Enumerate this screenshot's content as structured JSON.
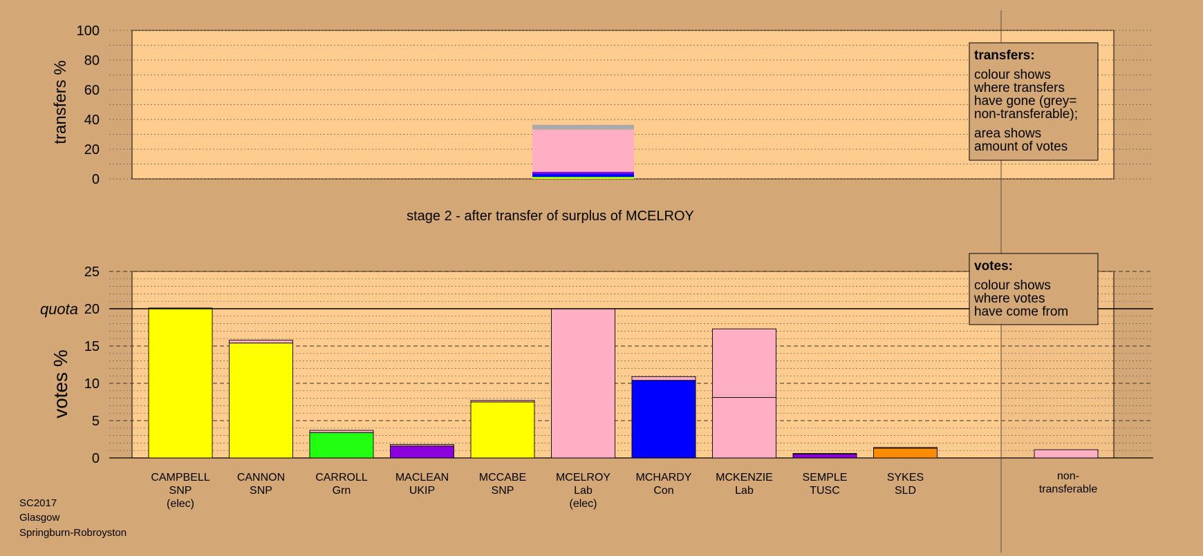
{
  "colors": {
    "background": "#d3a876",
    "panel": "#ffcc8f",
    "SNP": "#ffff00",
    "Grn": "#22ff11",
    "UKIP": "#8b00dd",
    "Lab": "#ffafc4",
    "Con": "#0000ff",
    "TUSC": "#8b00dd",
    "SLD": "#ff8c00",
    "nontransferable": "#aaaaaa"
  },
  "chart_data": [
    {
      "type": "bar",
      "name": "transfers",
      "ylabel": "transfers %",
      "ylim": [
        0,
        100
      ],
      "yticks": [
        "0",
        "20",
        "40",
        "60",
        "80",
        "100"
      ],
      "subtitle": "stage 2 - after transfer of surplus of MCELROY",
      "transfer_from": "MCELROY",
      "segments": [
        {
          "party": "SNP",
          "from": 0,
          "to": 0.8
        },
        {
          "party": "Grn",
          "from": 0.8,
          "to": 1.4
        },
        {
          "party": "Con",
          "from": 1.4,
          "to": 3.6
        },
        {
          "party": "UKIP",
          "from": 3.6,
          "to": 4.8
        },
        {
          "party": "Lab",
          "from": 4.8,
          "to": 33.2
        },
        {
          "party": "nontransferable",
          "from": 33.2,
          "to": 36.4
        }
      ],
      "legend": {
        "heading": "transfers:",
        "text1": "colour shows where transfers have gone (grey= non-transferable);",
        "text2": "area shows amount of votes"
      }
    },
    {
      "type": "bar",
      "name": "votes",
      "ylabel": "votes %",
      "ylim": [
        0,
        25
      ],
      "yticks": [
        "0",
        "5",
        "10",
        "15",
        "20",
        "25"
      ],
      "quota_label": "quota",
      "quota": 20,
      "categories": [
        {
          "name": "CAMPBELL",
          "party": "SNP",
          "note": "(elec)",
          "segments": [
            {
              "party": "SNP",
              "value": 20.1
            }
          ]
        },
        {
          "name": "CANNON",
          "party": "SNP",
          "note": "",
          "segments": [
            {
              "party": "SNP",
              "value": 15.4
            },
            {
              "party": "Lab",
              "value": 0.4
            }
          ]
        },
        {
          "name": "CARROLL",
          "party": "Grn",
          "note": "",
          "segments": [
            {
              "party": "Grn",
              "value": 3.4
            },
            {
              "party": "Lab",
              "value": 0.3
            }
          ]
        },
        {
          "name": "MACLEAN",
          "party": "UKIP",
          "note": "",
          "segments": [
            {
              "party": "UKIP",
              "value": 1.6
            },
            {
              "party": "Lab",
              "value": 0.2
            }
          ]
        },
        {
          "name": "MCCABE",
          "party": "SNP",
          "note": "",
          "segments": [
            {
              "party": "SNP",
              "value": 7.5
            },
            {
              "party": "Lab",
              "value": 0.2
            }
          ]
        },
        {
          "name": "MCELROY",
          "party": "Lab",
          "note": "(elec)",
          "segments": [
            {
              "party": "Lab",
              "value": 20.0
            }
          ]
        },
        {
          "name": "MCHARDY",
          "party": "Con",
          "note": "",
          "segments": [
            {
              "party": "Con",
              "value": 10.4
            },
            {
              "party": "Lab",
              "value": 0.5
            }
          ]
        },
        {
          "name": "MCKENZIE",
          "party": "Lab",
          "note": "",
          "segments": [
            {
              "party": "Lab",
              "value": 8.1
            },
            {
              "party": "Lab",
              "value": 9.2
            }
          ]
        },
        {
          "name": "SEMPLE",
          "party": "TUSC",
          "note": "",
          "segments": [
            {
              "party": "TUSC",
              "value": 0.5
            },
            {
              "party": "Lab",
              "value": 0.1
            }
          ]
        },
        {
          "name": "SYKES",
          "party": "SLD",
          "note": "",
          "segments": [
            {
              "party": "SLD",
              "value": 1.3
            },
            {
              "party": "Lab",
              "value": 0.1
            }
          ]
        }
      ],
      "nontransferable": {
        "line1": "non-",
        "line2": "transferable",
        "value": 1.1
      },
      "legend": {
        "heading": "votes:",
        "text": "colour shows where votes have come from"
      }
    }
  ],
  "footer": {
    "line1": "SC2017",
    "line2": "Glasgow",
    "line3": "Springburn-Robroyston"
  }
}
